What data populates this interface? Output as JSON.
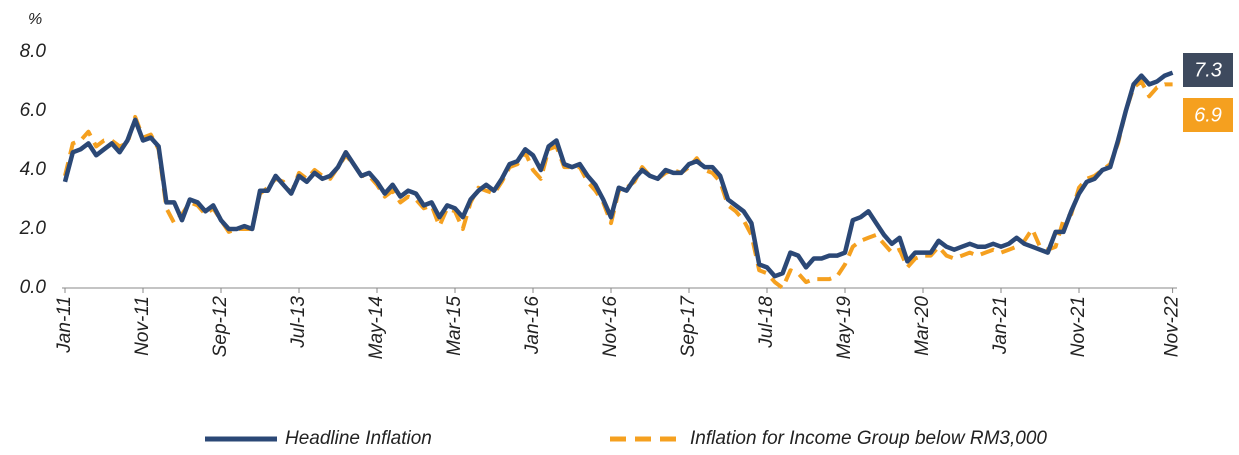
{
  "chart_data": {
    "type": "line",
    "y_label": "%",
    "categories": [
      "Jan-11",
      null,
      null,
      null,
      null,
      null,
      null,
      null,
      null,
      null,
      "Nov-11",
      null,
      null,
      null,
      null,
      null,
      null,
      null,
      null,
      null,
      "Sep-12",
      null,
      null,
      null,
      null,
      null,
      null,
      null,
      null,
      null,
      "Jul-13",
      null,
      null,
      null,
      null,
      null,
      null,
      null,
      null,
      null,
      "May-14",
      null,
      null,
      null,
      null,
      null,
      null,
      null,
      null,
      null,
      "Mar-15",
      null,
      null,
      null,
      null,
      null,
      null,
      null,
      null,
      null,
      "Jan-16",
      null,
      null,
      null,
      null,
      null,
      null,
      null,
      null,
      null,
      "Nov-16",
      null,
      null,
      null,
      null,
      null,
      null,
      null,
      null,
      null,
      "Sep-17",
      null,
      null,
      null,
      null,
      null,
      null,
      null,
      null,
      null,
      "Jul-18",
      null,
      null,
      null,
      null,
      null,
      null,
      null,
      null,
      null,
      "May-19",
      null,
      null,
      null,
      null,
      null,
      null,
      null,
      null,
      null,
      "Mar-20",
      null,
      null,
      null,
      null,
      null,
      null,
      null,
      null,
      null,
      "Jan-21",
      null,
      null,
      null,
      null,
      null,
      null,
      null,
      null,
      null,
      "Nov-21",
      null,
      null,
      null,
      null,
      null,
      null,
      null,
      null,
      null,
      null,
      null,
      "Nov-22"
    ],
    "series": [
      {
        "name": "Headline Inflation",
        "color": "#2b4876",
        "dash": false,
        "values": [
          3.6,
          4.6,
          4.7,
          4.9,
          4.5,
          4.7,
          4.9,
          4.6,
          5.0,
          5.7,
          5.0,
          5.1,
          4.8,
          2.9,
          2.9,
          2.3,
          3.0,
          2.9,
          2.6,
          2.8,
          2.3,
          2.0,
          2.0,
          2.1,
          2.0,
          3.3,
          3.3,
          3.8,
          3.5,
          3.2,
          3.8,
          3.6,
          3.9,
          3.7,
          3.8,
          4.1,
          4.6,
          4.2,
          3.8,
          3.9,
          3.6,
          3.2,
          3.5,
          3.1,
          3.3,
          3.2,
          2.8,
          2.9,
          2.4,
          2.8,
          2.7,
          2.4,
          3.0,
          3.3,
          3.5,
          3.3,
          3.7,
          4.2,
          4.3,
          4.7,
          4.5,
          4.0,
          4.8,
          5.0,
          4.2,
          4.1,
          4.2,
          3.8,
          3.5,
          3.0,
          2.4,
          3.4,
          3.3,
          3.7,
          4.0,
          3.8,
          3.7,
          4.0,
          3.9,
          3.9,
          4.2,
          4.3,
          4.1,
          4.1,
          3.8,
          3.0,
          2.8,
          2.6,
          2.2,
          0.8,
          0.7,
          0.4,
          0.5,
          1.2,
          1.1,
          0.7,
          1.0,
          1.0,
          1.1,
          1.1,
          1.2,
          2.3,
          2.4,
          2.6,
          2.2,
          1.8,
          1.5,
          1.7,
          0.9,
          1.2,
          1.2,
          1.2,
          1.6,
          1.4,
          1.3,
          1.4,
          1.5,
          1.4,
          1.4,
          1.5,
          1.4,
          1.5,
          1.7,
          1.5,
          1.4,
          1.3,
          1.2,
          1.9,
          1.9,
          2.6,
          3.2,
          3.6,
          3.7,
          4.0,
          4.1,
          5.0,
          6.0,
          6.9,
          7.2,
          6.9,
          7.0,
          7.2,
          7.3
        ]
      },
      {
        "name": "Inflation for Income Group below RM3,000",
        "color": "#f5a01f",
        "dash": true,
        "values": [
          3.8,
          4.9,
          5.0,
          5.3,
          4.8,
          5.0,
          5.0,
          4.8,
          4.9,
          5.8,
          5.1,
          5.2,
          4.7,
          2.7,
          2.2,
          2.5,
          2.9,
          2.8,
          2.5,
          2.7,
          2.3,
          1.9,
          2.0,
          2.0,
          2.0,
          3.2,
          3.4,
          3.7,
          3.6,
          3.2,
          3.9,
          3.7,
          4.0,
          3.8,
          3.7,
          4.1,
          4.5,
          4.2,
          3.8,
          3.8,
          3.5,
          3.1,
          3.3,
          2.9,
          3.1,
          3.0,
          2.7,
          2.8,
          2.1,
          2.7,
          2.6,
          2.0,
          2.9,
          3.4,
          3.3,
          3.2,
          3.6,
          4.1,
          4.2,
          4.6,
          4.0,
          3.7,
          4.7,
          4.8,
          4.1,
          4.1,
          4.1,
          3.6,
          3.3,
          2.9,
          2.2,
          3.3,
          3.4,
          3.6,
          4.1,
          3.8,
          3.7,
          3.9,
          4.0,
          3.9,
          4.1,
          4.4,
          4.0,
          3.9,
          3.6,
          2.8,
          2.6,
          2.3,
          1.8,
          0.6,
          0.5,
          0.2,
          0.0,
          0.6,
          0.5,
          0.2,
          0.3,
          0.3,
          0.3,
          0.4,
          0.8,
          1.4,
          1.6,
          1.7,
          1.8,
          1.5,
          1.2,
          1.3,
          0.7,
          1.0,
          1.1,
          1.1,
          1.4,
          1.1,
          1.0,
          1.1,
          1.2,
          1.1,
          1.2,
          1.3,
          1.2,
          1.3,
          1.4,
          1.6,
          2.0,
          1.4,
          1.3,
          1.4,
          2.3,
          2.5,
          3.4,
          3.7,
          3.8,
          4.0,
          4.2,
          4.9,
          6.0,
          6.8,
          7.0,
          6.5,
          6.8,
          6.9,
          6.9
        ]
      }
    ],
    "ylim": [
      0,
      8
    ],
    "yticks": [
      {
        "value": 0,
        "label": "0.0"
      },
      {
        "value": 2,
        "label": "2.0"
      },
      {
        "value": 4,
        "label": "4.0"
      },
      {
        "value": 6,
        "label": "6.0"
      },
      {
        "value": 8,
        "label": "8.0"
      }
    ],
    "grid": false,
    "legend": "bottom"
  }
}
